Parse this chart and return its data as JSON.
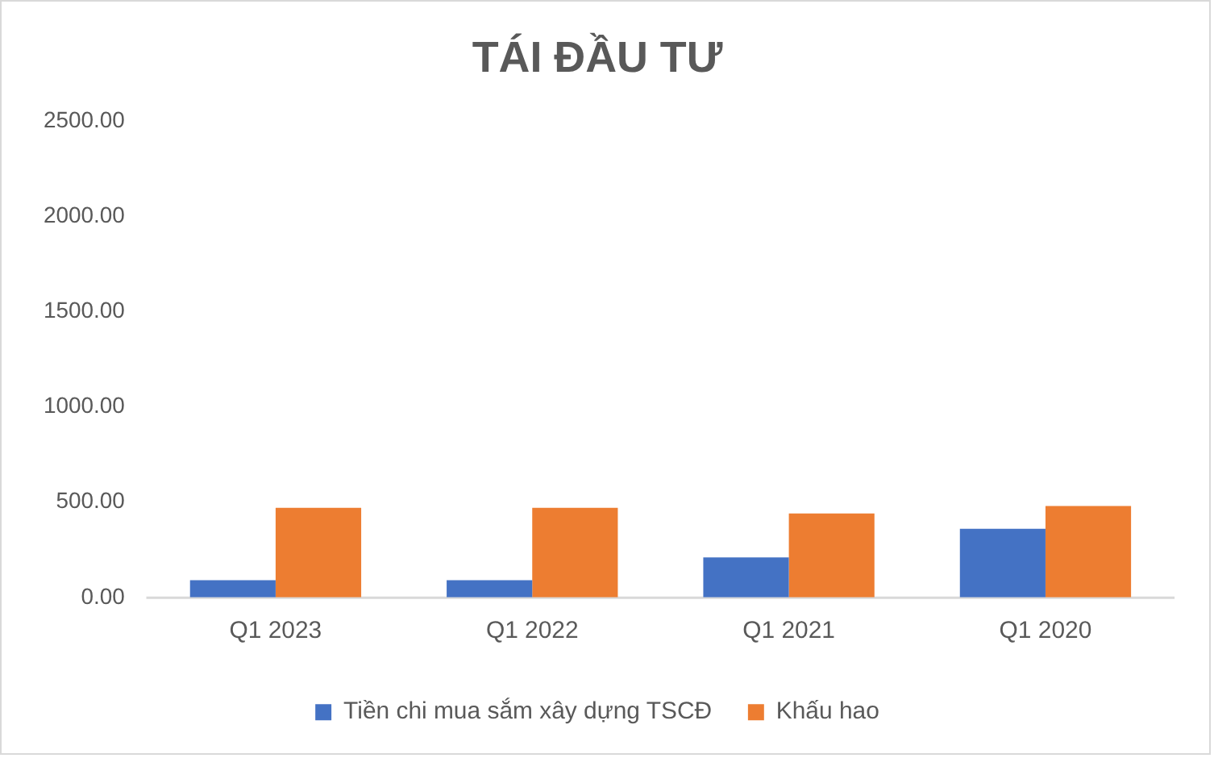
{
  "chart_data": {
    "type": "bar",
    "title": "TÁI ĐẦU TƯ",
    "categories": [
      "Q1 2023",
      "Q1 2022",
      "Q1 2021",
      "Q1 2020"
    ],
    "series": [
      {
        "name": "Tiền chi mua sắm xây dựng TSCĐ",
        "color": "#4472c4",
        "values": [
          90,
          90,
          210,
          360
        ]
      },
      {
        "name": "Khấu hao",
        "color": "#ed7d31",
        "values": [
          470,
          470,
          440,
          480
        ]
      }
    ],
    "ylim": [
      0,
      2500
    ],
    "yticks": [
      {
        "value": 0,
        "label": "0.00"
      },
      {
        "value": 500,
        "label": "500.00"
      },
      {
        "value": 1000,
        "label": "1000.00"
      },
      {
        "value": 1500,
        "label": "1500.00"
      },
      {
        "value": 2000,
        "label": "2000.00"
      },
      {
        "value": 2500,
        "label": "2500.00"
      }
    ],
    "legend": "bottom"
  }
}
